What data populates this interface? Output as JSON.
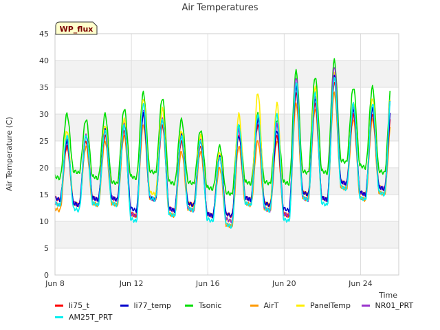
{
  "chart_data": {
    "type": "line",
    "title": "Air Temperatures",
    "xlabel": "Time",
    "ylabel": "Air Temperature (C)",
    "ylim": [
      0,
      45
    ],
    "yticks": [
      0,
      5,
      10,
      15,
      20,
      25,
      30,
      35,
      40,
      45
    ],
    "xlim": [
      "2023-06-08",
      "2023-06-26"
    ],
    "xticks": [
      "Jun 8",
      "Jun 12",
      "Jun 16",
      "Jun 20",
      "Jun 24"
    ],
    "xtick_dates": [
      "2023-06-08",
      "2023-06-12",
      "2023-06-16",
      "2023-06-20",
      "2023-06-24"
    ],
    "grid": true,
    "legend_position": "bottom",
    "annotation": "WP_flux",
    "series": [
      {
        "name": "li75_t",
        "color": "#ff0000",
        "x": [
          "2023-06-08",
          "2023-06-09",
          "2023-06-10",
          "2023-06-11",
          "2023-06-12",
          "2023-06-13",
          "2023-06-14",
          "2023-06-15",
          "2023-06-16",
          "2023-06-17",
          "2023-06-18",
          "2023-06-19",
          "2023-06-20",
          "2023-06-21",
          "2023-06-22",
          "2023-06-23",
          "2023-06-24",
          "2023-06-25"
        ],
        "min": [
          14,
          13,
          14,
          14,
          11,
          14,
          12,
          13,
          11,
          11,
          14,
          13,
          11,
          15,
          14,
          17,
          15,
          16
        ],
        "max": [
          24,
          25,
          26,
          27,
          30,
          28,
          25,
          24,
          22,
          26,
          28,
          26,
          34,
          32,
          36,
          30,
          30,
          31
        ]
      },
      {
        "name": "li77_temp",
        "color": "#0000cc",
        "x": [
          "2023-06-08",
          "2023-06-09",
          "2023-06-10",
          "2023-06-11",
          "2023-06-12",
          "2023-06-13",
          "2023-06-14",
          "2023-06-15",
          "2023-06-16",
          "2023-06-17",
          "2023-06-18",
          "2023-06-19",
          "2023-06-20",
          "2023-06-21",
          "2023-06-22",
          "2023-06-23",
          "2023-06-24",
          "2023-06-25"
        ],
        "min": [
          14,
          13,
          14,
          14,
          12,
          14,
          12,
          13,
          11,
          11,
          14,
          13,
          12,
          15,
          14,
          17,
          15,
          16
        ],
        "max": [
          25,
          26,
          27,
          28,
          30,
          29,
          26,
          25,
          22,
          26,
          29,
          27,
          35,
          33,
          37,
          31,
          31,
          32
        ]
      },
      {
        "name": "Tsonic",
        "color": "#00dd00",
        "x": [
          "2023-06-08",
          "2023-06-09",
          "2023-06-10",
          "2023-06-11",
          "2023-06-12",
          "2023-06-13",
          "2023-06-14",
          "2023-06-15",
          "2023-06-16",
          "2023-06-17",
          "2023-06-18",
          "2023-06-19",
          "2023-06-20",
          "2023-06-21",
          "2023-06-22",
          "2023-06-23",
          "2023-06-24",
          "2023-06-25"
        ],
        "min": [
          18,
          19,
          18,
          17,
          18,
          19,
          17,
          17,
          16,
          15,
          17,
          17,
          17,
          19,
          19,
          21,
          20,
          19
        ],
        "max": [
          30,
          29,
          30,
          31,
          34,
          33,
          29,
          27,
          24,
          28,
          30,
          29,
          38,
          37,
          40,
          35,
          35,
          36
        ]
      },
      {
        "name": "AirT",
        "color": "#ff9900",
        "x": [
          "2023-06-08",
          "2023-06-09",
          "2023-06-10",
          "2023-06-11",
          "2023-06-12",
          "2023-06-13",
          "2023-06-14",
          "2023-06-15",
          "2023-06-16",
          "2023-06-17",
          "2023-06-18",
          "2023-06-19",
          "2023-06-20",
          "2023-06-21",
          "2023-06-22",
          "2023-06-23",
          "2023-06-24",
          "2023-06-25"
        ],
        "min": [
          12,
          13,
          13,
          13,
          11,
          14,
          11,
          12,
          11,
          9,
          13,
          12,
          11,
          14,
          14,
          16,
          14,
          15
        ],
        "max": [
          24,
          24,
          25,
          26,
          28,
          28,
          23,
          23,
          20,
          24,
          25,
          25,
          32,
          31,
          34,
          29,
          29,
          29
        ]
      },
      {
        "name": "PanelTemp",
        "color": "#ffee00",
        "x": [
          "2023-06-08",
          "2023-06-09",
          "2023-06-10",
          "2023-06-11",
          "2023-06-12",
          "2023-06-13",
          "2023-06-14",
          "2023-06-15",
          "2023-06-16",
          "2023-06-17",
          "2023-06-18",
          "2023-06-19",
          "2023-06-20",
          "2023-06-21",
          "2023-06-22",
          "2023-06-23",
          "2023-06-24",
          "2023-06-25"
        ],
        "min": [
          13,
          13,
          14,
          14,
          11,
          15,
          12,
          13,
          11,
          10,
          14,
          13,
          11,
          15,
          14,
          17,
          15,
          16
        ],
        "max": [
          27,
          26,
          28,
          29,
          33,
          31,
          27,
          26,
          23,
          30,
          34,
          32,
          36,
          35,
          38,
          32,
          33,
          35
        ]
      },
      {
        "name": "NR01_PRT",
        "color": "#9933cc",
        "x": [
          "2023-06-08",
          "2023-06-09",
          "2023-06-10",
          "2023-06-11",
          "2023-06-12",
          "2023-06-13",
          "2023-06-14",
          "2023-06-15",
          "2023-06-16",
          "2023-06-17",
          "2023-06-18",
          "2023-06-19",
          "2023-06-20",
          "2023-06-21",
          "2023-06-22",
          "2023-06-23",
          "2023-06-24",
          "2023-06-25"
        ],
        "min": [
          13,
          13,
          14,
          14,
          11,
          14,
          12,
          12,
          11,
          10,
          14,
          12,
          11,
          14,
          14,
          17,
          15,
          16
        ],
        "max": [
          25,
          26,
          27,
          28,
          31,
          29,
          26,
          25,
          22,
          27,
          29,
          28,
          37,
          33,
          39,
          31,
          31,
          35
        ]
      },
      {
        "name": "AM25T_PRT",
        "color": "#00eeee",
        "x": [
          "2023-06-08",
          "2023-06-09",
          "2023-06-10",
          "2023-06-11",
          "2023-06-12",
          "2023-06-13",
          "2023-06-14",
          "2023-06-15",
          "2023-06-16",
          "2023-06-17",
          "2023-06-18",
          "2023-06-19",
          "2023-06-20",
          "2023-06-21",
          "2023-06-22",
          "2023-06-23",
          "2023-06-24",
          "2023-06-25"
        ],
        "min": [
          13,
          12,
          13,
          13,
          10,
          14,
          11,
          12,
          10,
          9,
          13,
          12,
          10,
          14,
          13,
          16,
          14,
          15
        ],
        "max": [
          26,
          26,
          27,
          28,
          32,
          29,
          26,
          25,
          22,
          28,
          30,
          30,
          36,
          34,
          37,
          32,
          32,
          35
        ]
      }
    ]
  }
}
